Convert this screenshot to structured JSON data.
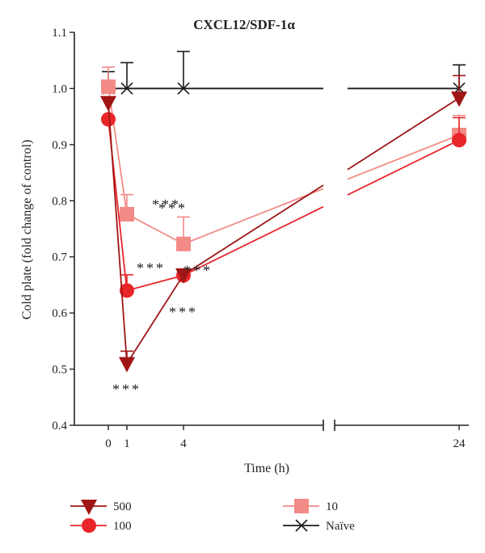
{
  "chart_data": {
    "type": "line",
    "title": "CXCL12/SDF-1α",
    "xlabel": "Time (h)",
    "ylabel": "Cold plate (fold change of control)",
    "ylim": [
      0.4,
      1.1
    ],
    "y_ticks": [
      "0.4",
      "0.5",
      "0.6",
      "0.7",
      "0.8",
      "0.9",
      "1.0",
      "1.1"
    ],
    "x_ticks": [
      "0",
      "1",
      "4",
      "24"
    ],
    "x_axis_break": true,
    "grid": false,
    "legend_position": "bottom",
    "series": [
      {
        "name": "500",
        "color": "#a01515",
        "marker": "triangle-down",
        "x": [
          0,
          1,
          4,
          24
        ],
        "y": [
          0.975,
          0.51,
          0.668,
          0.983
        ],
        "err": [
          0.0,
          0.022,
          0.0,
          0.04
        ],
        "annotations": [
          {
            "x": 1,
            "text": "***",
            "anchor": "below"
          },
          {
            "x": 4,
            "text": "***",
            "anchor": "below"
          }
        ]
      },
      {
        "name": "100",
        "color": "#e8262a",
        "marker": "circle",
        "x": [
          0,
          1,
          4,
          24
        ],
        "y": [
          0.945,
          0.64,
          0.667,
          0.908
        ],
        "err": [
          0.0,
          0.028,
          0.0,
          0.04
        ],
        "annotations": [
          {
            "x": 1,
            "text": "***",
            "anchor": "above-right"
          },
          {
            "x": 4,
            "text": "***",
            "anchor": "right"
          }
        ]
      },
      {
        "name": "10",
        "color": "#f28a86",
        "marker": "square",
        "x": [
          0,
          1,
          4,
          24
        ],
        "y": [
          1.003,
          0.776,
          0.723,
          0.917
        ],
        "err": [
          0.035,
          0.035,
          0.048,
          0.035
        ],
        "annotations": [
          {
            "x": 1,
            "text": "***",
            "anchor": "right"
          },
          {
            "x": 4,
            "text": "***",
            "anchor": "above-left"
          }
        ]
      },
      {
        "name": "Naïve",
        "color": "#1a1a1a",
        "marker": "x",
        "x": [
          0,
          1,
          4,
          24
        ],
        "y": [
          1.0,
          1.0,
          1.0,
          1.0
        ],
        "err": [
          0.03,
          0.046,
          0.066,
          0.042
        ],
        "annotations": []
      }
    ]
  }
}
